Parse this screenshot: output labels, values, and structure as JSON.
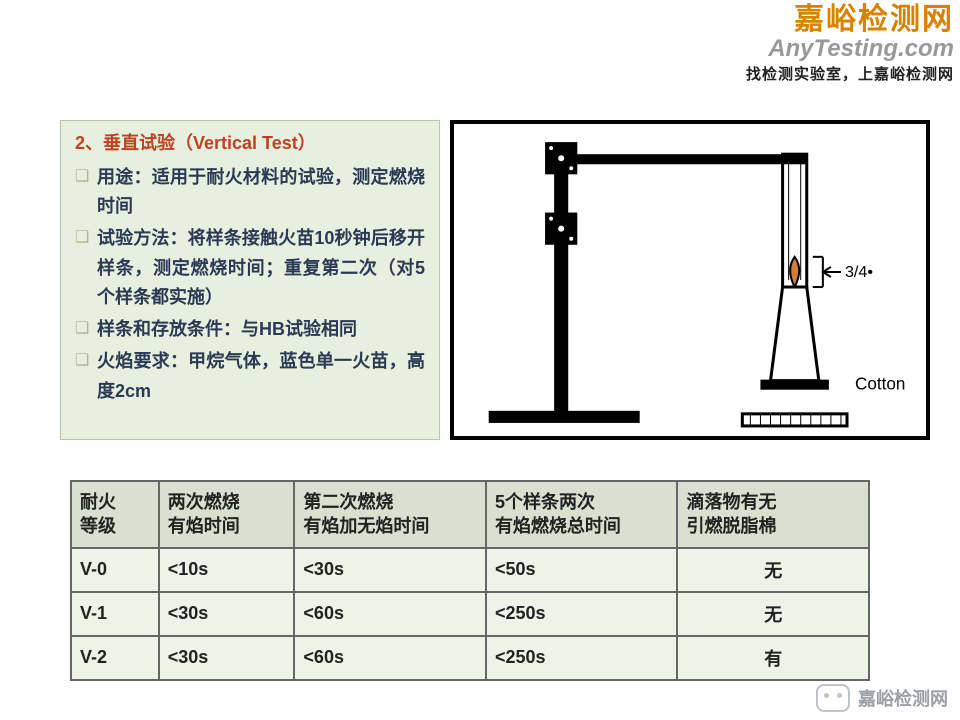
{
  "brand": {
    "cn": "嘉峪检测网",
    "en": "AnyTesting.com",
    "tagline": "找检测实验室，上嘉峪检测网"
  },
  "desc": {
    "title": "2、垂直试验（Vertical Test）",
    "bullets": [
      "用途：适用于耐火材料的试验，测定燃烧时间",
      "试验方法：将样条接触火苗10秒钟后移开样条，测定燃烧时间；重复第二次（对5个样条都实施）",
      "样条和存放条件：与HB试验相同",
      "火焰要求：甲烷气体，蓝色单一火苗，高度2cm"
    ]
  },
  "diagram": {
    "gap_label": "3/4•",
    "cotton_label": "Cotton"
  },
  "table": {
    "headers": [
      "耐火\n等级",
      "两次燃烧\n有焰时间",
      "第二次燃烧\n有焰加无焰时间",
      "5个样条两次\n有焰燃烧总时间",
      "滴落物有无\n引燃脱脂棉"
    ],
    "rows": [
      [
        "V-0",
        "<10s",
        "<30s",
        "<50s",
        "无"
      ],
      [
        "V-1",
        "<30s",
        "<60s",
        "<250s",
        "无"
      ],
      [
        "V-2",
        "<30s",
        "<60s",
        "<250s",
        "有"
      ]
    ]
  },
  "watermark": "嘉峪检测网"
}
